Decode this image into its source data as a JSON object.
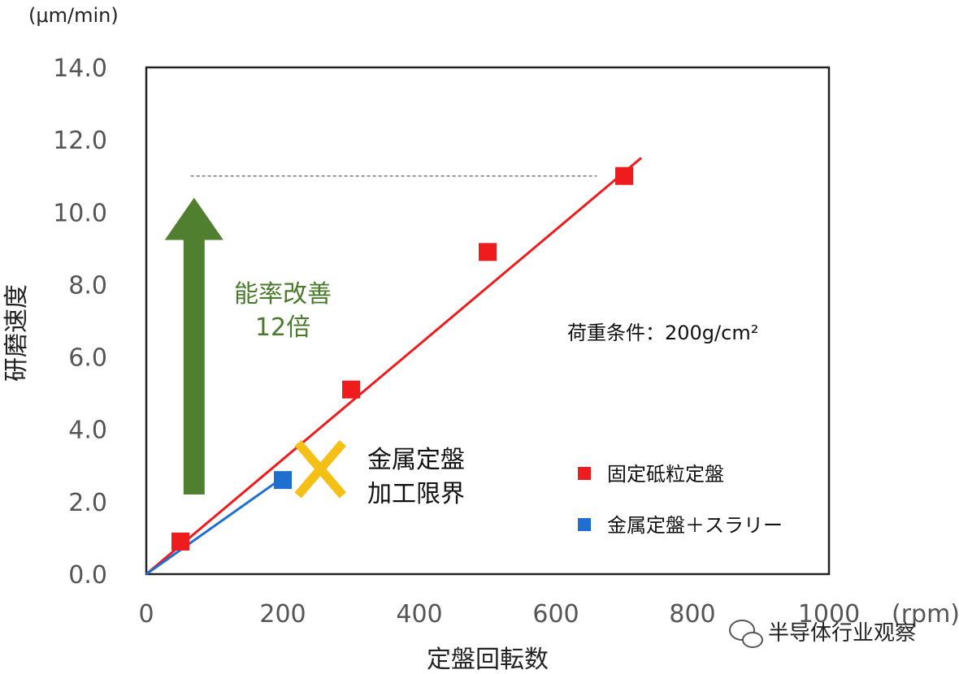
{
  "chart_data": {
    "type": "scatter",
    "y_unit": "(μm/min)",
    "x_unit": "(rpm)",
    "xlabel": "定盤回転数",
    "ylabel": "研磨速度",
    "xlim": [
      0,
      1000
    ],
    "ylim": [
      0,
      14
    ],
    "x_ticks": [
      "0",
      "200",
      "400",
      "600",
      "800",
      "1000"
    ],
    "y_ticks": [
      "0.0",
      "2.0",
      "4.0",
      "6.0",
      "8.0",
      "10.0",
      "12.0",
      "14.0"
    ],
    "grid": false,
    "legend_position": "bottom-right",
    "series": [
      {
        "name": "固定砥粒定盤",
        "color": "#ee1c1c",
        "marker": "square",
        "points": [
          [
            50,
            0.9
          ],
          [
            300,
            5.1
          ],
          [
            500,
            8.9
          ],
          [
            700,
            11.0
          ]
        ],
        "trendline": [
          [
            0,
            0
          ],
          [
            725,
            11.5
          ]
        ]
      },
      {
        "name": "金属定盤＋スラリー",
        "color": "#1f6fd0",
        "marker": "square",
        "points": [
          [
            50,
            0.9
          ],
          [
            200,
            2.6
          ]
        ],
        "trendline": [
          [
            0,
            0
          ],
          [
            210,
            2.8
          ]
        ]
      }
    ],
    "reference_line": {
      "y": 11.0,
      "x_range": [
        65,
        660
      ],
      "style": "dashed"
    },
    "annotations": {
      "improvement_arrow": {
        "from": 2.2,
        "to": 10.4,
        "x": 70,
        "color": "#4f7f2f"
      },
      "improvement_line1": "能率改善",
      "improvement_line2": "12倍",
      "limit_mark": {
        "x": 255,
        "y": 2.9,
        "color": "#f5c016"
      },
      "limit_line1": "金属定盤",
      "limit_line2": "加工限界",
      "load_condition": "荷重条件：200g/cm²"
    }
  },
  "watermark": {
    "icon": "wechat-icon",
    "text": "半导体行业观察"
  }
}
